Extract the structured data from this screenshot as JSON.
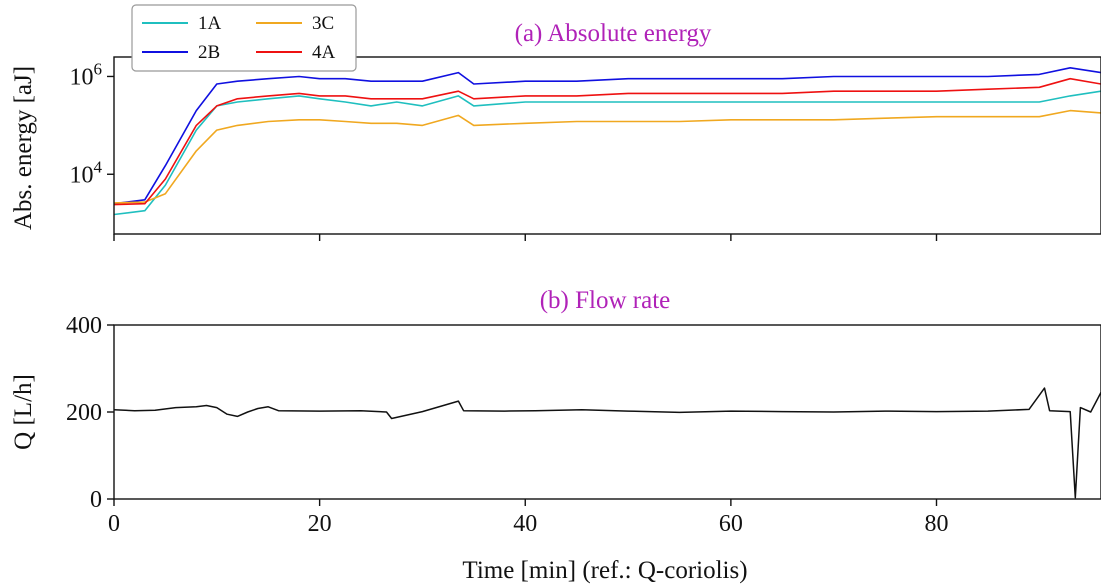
{
  "chart_data": [
    {
      "type": "line",
      "title": "(a) Absolute energy",
      "xlabel": "",
      "ylabel": "Abs. energy [aJ]",
      "y_scale": "log",
      "xlim": [
        0,
        96
      ],
      "ylim": [
        600,
        2500000
      ],
      "x_ticks": [
        0,
        20,
        40,
        60,
        80
      ],
      "y_ticks": [
        {
          "value": 10000,
          "base": "10",
          "exp": "4"
        },
        {
          "value": 1000000,
          "base": "10",
          "exp": "6"
        }
      ],
      "legend_position": "top-left",
      "x": [
        0,
        3,
        5,
        8,
        10,
        12,
        15,
        18,
        20,
        22.5,
        25,
        27.5,
        30,
        33.5,
        35,
        40,
        45,
        50,
        55,
        60,
        65,
        70,
        75,
        80,
        85,
        90,
        93,
        96
      ],
      "series": [
        {
          "name": "1A",
          "color": "#1fbfbf",
          "values": [
            1500,
            1800,
            6000,
            80000,
            250000,
            300000,
            350000,
            400000,
            350000,
            300000,
            250000,
            300000,
            250000,
            400000,
            250000,
            300000,
            300000,
            300000,
            300000,
            300000,
            300000,
            300000,
            300000,
            300000,
            300000,
            300000,
            400000,
            500000
          ]
        },
        {
          "name": "2B",
          "color": "#1010e0",
          "values": [
            2500,
            3000,
            15000,
            200000,
            700000,
            800000,
            900000,
            1000000,
            900000,
            900000,
            800000,
            800000,
            800000,
            1200000,
            700000,
            800000,
            800000,
            900000,
            900000,
            900000,
            900000,
            1000000,
            1000000,
            1000000,
            1000000,
            1100000,
            1500000,
            1200000
          ]
        },
        {
          "name": "3C",
          "color": "#f0a820",
          "values": [
            2600,
            2700,
            4000,
            30000,
            80000,
            100000,
            120000,
            130000,
            130000,
            120000,
            110000,
            110000,
            100000,
            160000,
            100000,
            110000,
            120000,
            120000,
            120000,
            130000,
            130000,
            130000,
            140000,
            150000,
            150000,
            150000,
            200000,
            180000
          ]
        },
        {
          "name": "4A",
          "color": "#ee1111",
          "values": [
            2400,
            2500,
            8000,
            100000,
            250000,
            350000,
            400000,
            450000,
            400000,
            400000,
            350000,
            350000,
            350000,
            500000,
            350000,
            400000,
            400000,
            450000,
            450000,
            450000,
            450000,
            500000,
            500000,
            500000,
            550000,
            600000,
            900000,
            700000
          ]
        }
      ]
    },
    {
      "type": "line",
      "title": "(b) Flow rate",
      "xlabel": "Time [min] (ref.: Q-coriolis)",
      "ylabel": "Q [L/h]",
      "xlim": [
        0,
        96
      ],
      "ylim": [
        0,
        400
      ],
      "x_ticks": [
        0,
        20,
        40,
        60,
        80
      ],
      "y_ticks": [
        0,
        200,
        400
      ],
      "series": [
        {
          "name": "Q",
          "color": "#111111",
          "x": [
            0,
            2,
            4,
            6,
            8,
            9,
            10,
            11,
            12,
            13,
            14,
            15,
            16,
            20,
            24,
            26.5,
            27,
            30,
            33.5,
            34,
            38,
            41,
            45.5,
            50,
            55,
            60,
            65,
            70,
            75,
            80,
            85,
            89,
            90.5,
            91,
            93,
            93.5,
            94,
            95,
            96
          ],
          "values": [
            205,
            203,
            204,
            210,
            212,
            215,
            210,
            195,
            190,
            200,
            208,
            212,
            203,
            202,
            203,
            200,
            185,
            201,
            225,
            203,
            202,
            203,
            205,
            202,
            199,
            202,
            201,
            200,
            202,
            201,
            202,
            206,
            255,
            203,
            201,
            3,
            210,
            200,
            245
          ]
        }
      ]
    }
  ]
}
